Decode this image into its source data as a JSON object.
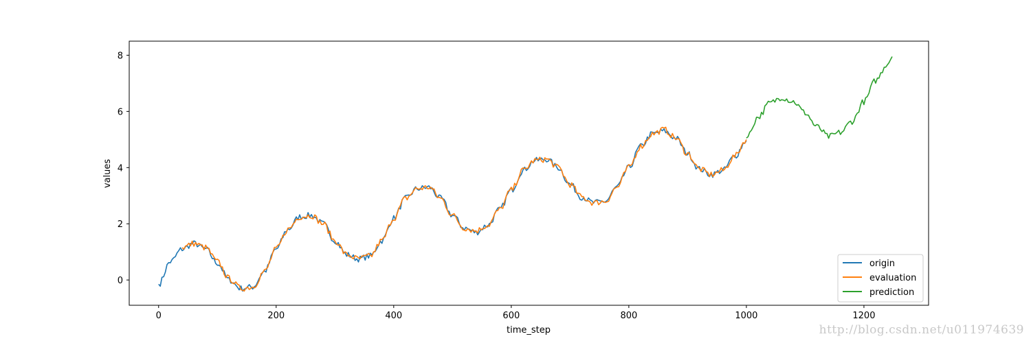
{
  "chart_data": {
    "type": "line",
    "title": "",
    "xlabel": "time_step",
    "ylabel": "values",
    "xlim": [
      -50,
      1310
    ],
    "ylim": [
      -0.9,
      8.5
    ],
    "x_ticks": [
      0,
      200,
      400,
      600,
      800,
      1000,
      1200
    ],
    "y_ticks": [
      0,
      2,
      4,
      6,
      8
    ],
    "grid": false,
    "legend_position": "lower right",
    "series": [
      {
        "name": "origin",
        "color": "#1f77b4",
        "x": [
          0,
          20,
          40,
          60,
          80,
          100,
          120,
          140,
          160,
          180,
          200,
          220,
          240,
          260,
          280,
          300,
          320,
          340,
          360,
          380,
          400,
          420,
          440,
          460,
          480,
          500,
          520,
          540,
          560,
          580,
          600,
          620,
          640,
          660,
          680,
          700,
          720,
          740,
          760,
          780,
          800,
          820,
          840,
          860,
          880,
          900,
          920,
          940,
          960,
          980,
          1000
        ],
        "y": [
          -0.15,
          0.65,
          1.1,
          1.3,
          1.1,
          0.6,
          0.0,
          -0.3,
          -0.25,
          0.3,
          1.1,
          1.8,
          2.25,
          2.3,
          2.0,
          1.4,
          0.9,
          0.75,
          0.85,
          1.4,
          2.2,
          2.9,
          3.25,
          3.3,
          2.9,
          2.3,
          1.85,
          1.7,
          1.95,
          2.5,
          3.2,
          3.9,
          4.25,
          4.3,
          4.0,
          3.4,
          2.95,
          2.75,
          2.8,
          3.3,
          4.0,
          4.75,
          5.2,
          5.3,
          5.05,
          4.5,
          3.95,
          3.75,
          3.9,
          4.4,
          4.95
        ]
      },
      {
        "name": "evaluation",
        "color": "#ff7f0e",
        "x": [
          40,
          60,
          80,
          100,
          120,
          140,
          160,
          180,
          200,
          220,
          240,
          260,
          280,
          300,
          320,
          340,
          360,
          380,
          400,
          420,
          440,
          460,
          480,
          500,
          520,
          540,
          560,
          580,
          600,
          620,
          640,
          660,
          680,
          700,
          720,
          740,
          760,
          780,
          800,
          820,
          840,
          860,
          880,
          900,
          920,
          940,
          960,
          980,
          1000
        ],
        "y": [
          1.15,
          1.3,
          1.15,
          0.65,
          0.05,
          -0.3,
          -0.25,
          0.3,
          1.1,
          1.8,
          2.25,
          2.3,
          2.0,
          1.4,
          0.9,
          0.75,
          0.85,
          1.4,
          2.2,
          2.9,
          3.25,
          3.3,
          2.9,
          2.3,
          1.85,
          1.75,
          1.95,
          2.5,
          3.2,
          3.9,
          4.25,
          4.3,
          4.0,
          3.4,
          2.95,
          2.75,
          2.8,
          3.3,
          4.0,
          4.75,
          5.2,
          5.35,
          5.05,
          4.5,
          3.95,
          3.75,
          3.9,
          4.4,
          5.0
        ]
      },
      {
        "name": "prediction",
        "color": "#2ca02c",
        "x": [
          1000,
          1020,
          1040,
          1060,
          1080,
          1100,
          1120,
          1140,
          1160,
          1180,
          1200,
          1220,
          1240,
          1248
        ],
        "y": [
          5.05,
          5.8,
          6.3,
          6.5,
          6.35,
          5.95,
          5.45,
          5.1,
          5.25,
          5.65,
          6.35,
          7.1,
          7.7,
          7.95
        ]
      }
    ]
  },
  "watermark": "http://blog.csdn.net/u011974639"
}
